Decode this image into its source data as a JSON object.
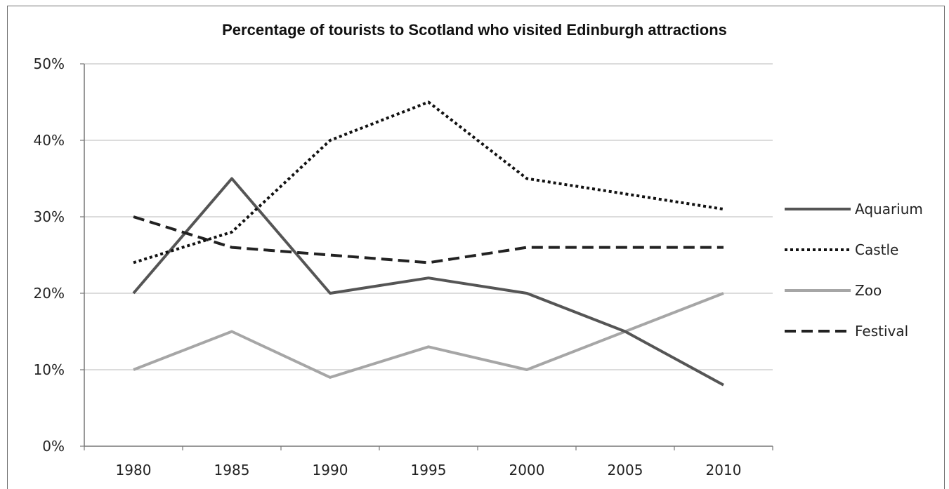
{
  "chart_data": {
    "type": "line",
    "title": "Percentage of tourists to Scotland who visited Edinburgh attractions",
    "xlabel": "",
    "ylabel": "",
    "x": [
      "1980",
      "1985",
      "1990",
      "1995",
      "2000",
      "2005",
      "2010"
    ],
    "y_ticks": [
      "0%",
      "10%",
      "20%",
      "30%",
      "40%",
      "50%"
    ],
    "ylim": [
      0,
      50
    ],
    "grid": true,
    "legend_position": "right",
    "series": [
      {
        "name": "Aquarium",
        "values": [
          20,
          35,
          20,
          22,
          20,
          15,
          8
        ],
        "color": "#555555",
        "style": "solid"
      },
      {
        "name": "Castle",
        "values": [
          24,
          28,
          40,
          45,
          35,
          33,
          31
        ],
        "color": "#111111",
        "style": "dotted"
      },
      {
        "name": "Zoo",
        "values": [
          10,
          15,
          9,
          13,
          10,
          15,
          20
        ],
        "color": "#a6a6a6",
        "style": "solid"
      },
      {
        "name": "Festival",
        "values": [
          30,
          26,
          25,
          24,
          26,
          26,
          26
        ],
        "color": "#222222",
        "style": "dashed"
      }
    ]
  }
}
